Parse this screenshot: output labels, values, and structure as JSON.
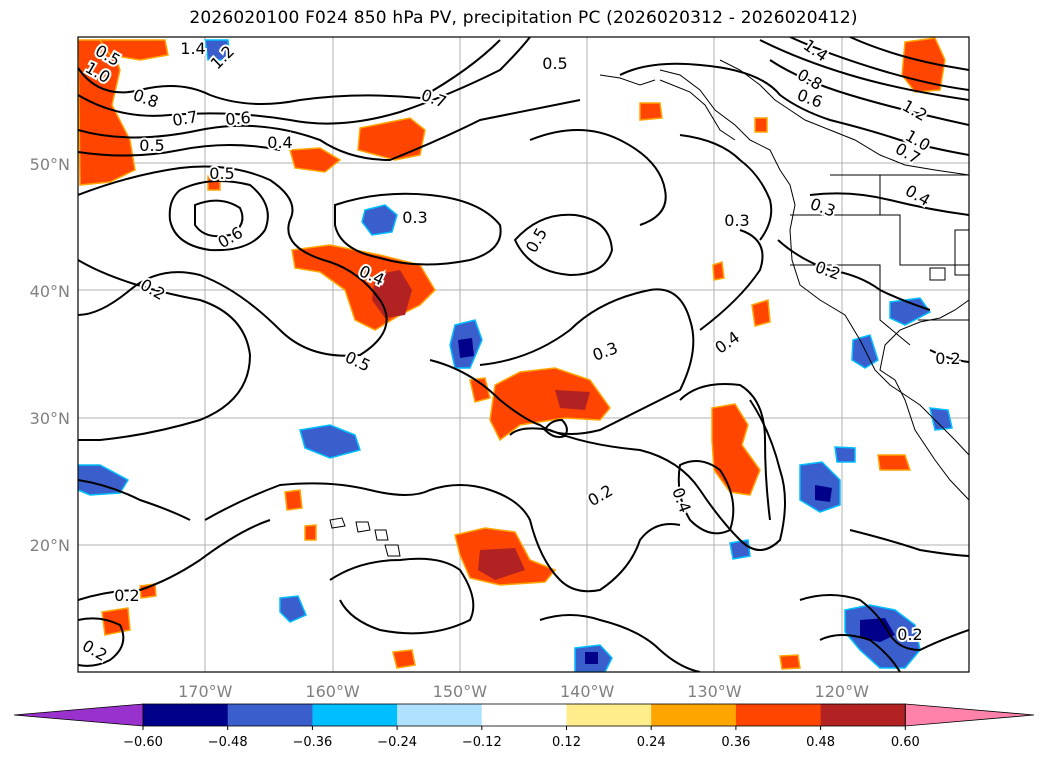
{
  "title": "2026020100 F024 850 hPa PV, precipitation PC (2026020312 - 2026020412)",
  "map": {
    "lat_labels": [
      {
        "text": "50°N",
        "lat": 50
      },
      {
        "text": "40°N",
        "lat": 40
      },
      {
        "text": "30°N",
        "lat": 30
      },
      {
        "text": "20°N",
        "lat": 20
      }
    ],
    "lon_labels": [
      {
        "text": "170°W",
        "lon": -170
      },
      {
        "text": "160°W",
        "lon": -160
      },
      {
        "text": "150°W",
        "lon": -150
      },
      {
        "text": "140°W",
        "lon": -140
      },
      {
        "text": "130°W",
        "lon": -130
      },
      {
        "text": "120°W",
        "lon": -120
      }
    ],
    "extent": {
      "lon_min": -180,
      "lon_max": -110,
      "lat_min": 10,
      "lat_max": 60
    },
    "grid": true,
    "contour_labels": [
      "1.4",
      "1.2",
      "1.0",
      "0.8",
      "0.7",
      "0.6",
      "0.5",
      "0.4",
      "0.5",
      "0.6",
      "0.2",
      "0.3",
      "0.4",
      "0.5",
      "0.5",
      "0.3",
      "0.5",
      "0.7",
      "0.5",
      "1.4",
      "0.8",
      "0.6",
      "1.2",
      "1.0",
      "0.7",
      "0.4",
      "0.3",
      "0.3",
      "0.2",
      "0.4",
      "0.2",
      "0.2",
      "0.4",
      "0.2",
      "0.2",
      "0.2"
    ]
  },
  "colorbar": {
    "ticks": [
      "−0.60",
      "−0.48",
      "−0.36",
      "−0.24",
      "−0.12",
      "0.12",
      "0.24",
      "0.36",
      "0.48",
      "0.60"
    ],
    "colors": [
      "#9932CC",
      "#00008B",
      "#3A5FCD",
      "#00BFFF",
      "#B0E2FF",
      "#FFFFFF",
      "#FFEC8B",
      "#FFA500",
      "#FF4500",
      "#B22222",
      "#FF82AB"
    ]
  }
}
